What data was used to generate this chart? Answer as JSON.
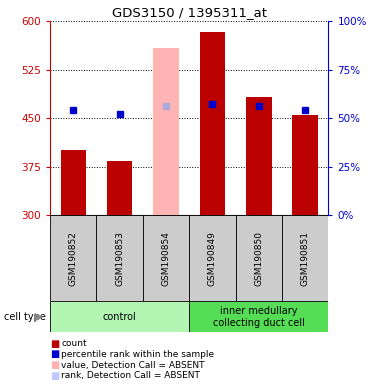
{
  "title": "GDS3150 / 1395311_at",
  "samples": [
    "GSM190852",
    "GSM190853",
    "GSM190854",
    "GSM190849",
    "GSM190850",
    "GSM190851"
  ],
  "groups": [
    {
      "label": "control",
      "indices": [
        0,
        1,
        2
      ],
      "color": "#b3f5b3"
    },
    {
      "label": "inner medullary\ncollecting duct cell",
      "indices": [
        3,
        4,
        5
      ],
      "color": "#55dd55"
    }
  ],
  "bar_values": [
    400,
    383,
    null,
    583,
    483,
    455
  ],
  "bar_colors": [
    "#bb0000",
    "#bb0000",
    null,
    "#bb0000",
    "#bb0000",
    "#bb0000"
  ],
  "absent_bar_value": 558,
  "absent_bar_index": 2,
  "absent_bar_color": "#ffb3b3",
  "percentile_values": [
    462,
    456,
    468,
    472,
    468,
    462
  ],
  "percentile_is_absent": [
    false,
    false,
    true,
    false,
    false,
    false
  ],
  "percentile_color_normal": "#0000cc",
  "percentile_color_absent": "#aaaadd",
  "ylim_left": [
    300,
    600
  ],
  "ylim_right": [
    0,
    100
  ],
  "yticks_left": [
    300,
    375,
    450,
    525,
    600
  ],
  "yticks_right": [
    0,
    25,
    50,
    75,
    100
  ],
  "left_axis_color": "#cc0000",
  "right_axis_color": "#0000cc",
  "bg_color": "#ffffff",
  "legend_items": [
    {
      "color": "#bb0000",
      "label": "count"
    },
    {
      "color": "#0000cc",
      "label": "percentile rank within the sample"
    },
    {
      "color": "#ffb3b3",
      "label": "value, Detection Call = ABSENT"
    },
    {
      "color": "#c0c8ff",
      "label": "rank, Detection Call = ABSENT"
    }
  ]
}
